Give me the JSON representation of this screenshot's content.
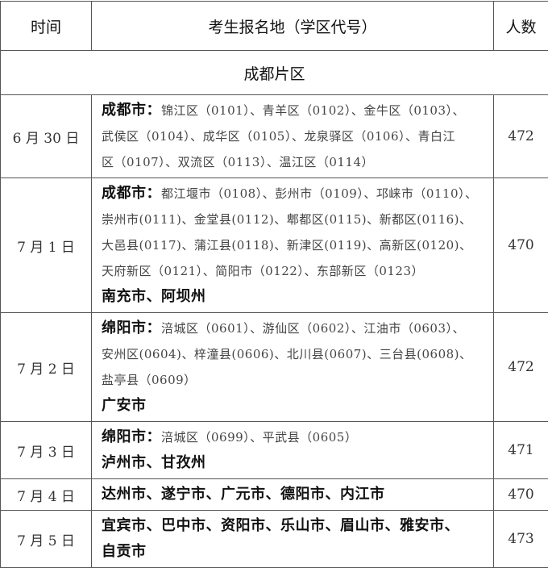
{
  "header": {
    "time": "时间",
    "place": "考生报名地（学区代号）",
    "count": "人数"
  },
  "region": "成都片区",
  "rows": [
    {
      "date": "6 月 30 日",
      "count": "472",
      "lines": [
        {
          "bold": "成都市：",
          "text": "锦江区（0101）、青羊区（0102）、金牛区（0103）、"
        },
        {
          "bold": "",
          "text": "武侯区（0104）、成华区（0105）、龙泉驿区（0106）、青白江"
        },
        {
          "bold": "",
          "text": "区（0107）、双流区（0113）、温江区（0114）"
        }
      ]
    },
    {
      "date": "7 月 1 日",
      "count": "470",
      "lines": [
        {
          "bold": "成都市：",
          "text": "都江堰市（0108）、彭州市（0109）、邛崃市（0110）、"
        },
        {
          "bold": "",
          "text": "崇州市(0111)、金堂县(0112)、郫都区(0115)、新都区(0116)、"
        },
        {
          "bold": "",
          "text": "大邑县(0117)、蒲江县(0118)、新津区(0119)、高新区(0120)、"
        },
        {
          "bold": "",
          "text": "天府新区（0121）、简阳市（0122）、东部新区（0123）"
        },
        {
          "bold": "南充市、阿坝州",
          "text": ""
        }
      ]
    },
    {
      "date": "7 月 2 日",
      "count": "472",
      "lines": [
        {
          "bold": "绵阳市：",
          "text": "涪城区（0601）、游仙区（0602）、江油市（0603）、"
        },
        {
          "bold": "",
          "text": "安州区(0604)、梓潼县(0606)、北川县(0607)、三台县(0608)、"
        },
        {
          "bold": "",
          "text": "盐亭县（0609）"
        },
        {
          "bold": "广安市",
          "text": ""
        }
      ]
    },
    {
      "date": "7 月 3 日",
      "count": "471",
      "lines": [
        {
          "bold": "绵阳市：",
          "text": "涪城区（0699）、平武县（0605）"
        },
        {
          "bold": "泸州市、甘孜州",
          "text": ""
        }
      ]
    },
    {
      "date": "7 月 4 日",
      "count": "470",
      "lines": [
        {
          "bold": "达州市、遂宁市、广元市、德阳市、内江市",
          "text": ""
        }
      ]
    },
    {
      "date": "7 月 5 日",
      "count": "473",
      "lines": [
        {
          "bold": "宜宾市、巴中市、资阳市、乐山市、眉山市、雅安市、",
          "text": ""
        },
        {
          "bold": "自贡市",
          "text": ""
        }
      ]
    }
  ]
}
